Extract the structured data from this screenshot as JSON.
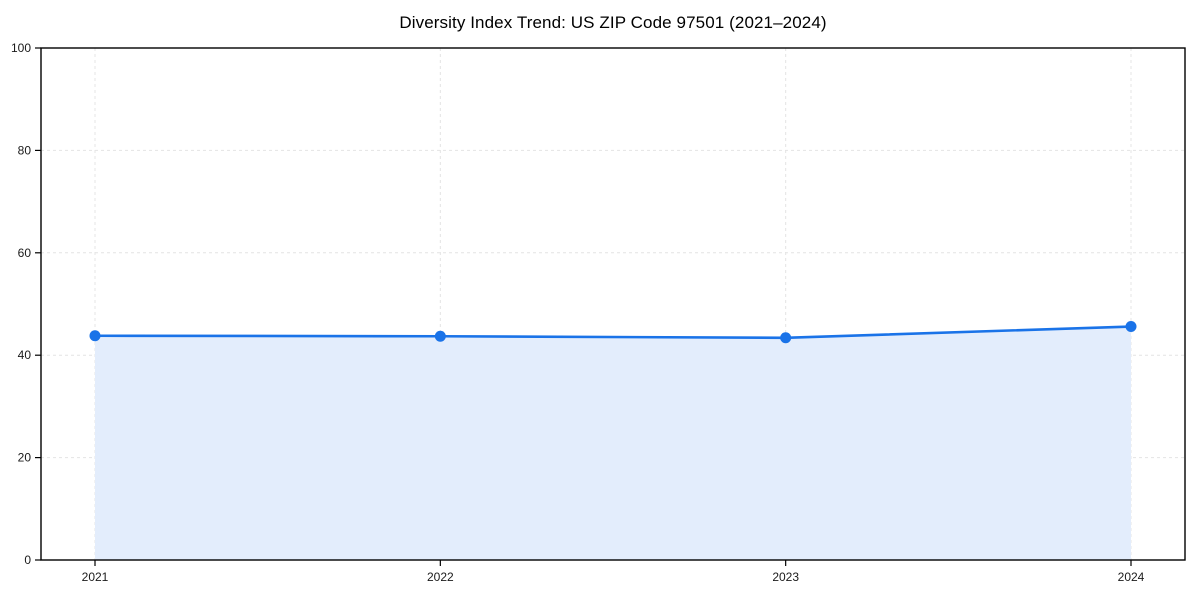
{
  "chart_data": {
    "type": "area",
    "title": "Diversity Index Trend: US ZIP Code 97501 (2021–2024)",
    "x": [
      "2021",
      "2022",
      "2023",
      "2024"
    ],
    "series": [
      {
        "name": "Diversity Index",
        "values": [
          43.8,
          43.7,
          43.4,
          45.6
        ]
      }
    ],
    "xlabel": "",
    "ylabel": "",
    "ylim": [
      0,
      100
    ],
    "yticks": [
      0,
      20,
      40,
      60,
      80,
      100
    ],
    "grid": "dashed both axes",
    "legend": "none",
    "colors": {
      "line": "#1a73e8",
      "marker": "#1a73e8",
      "fill": "#e3edfc",
      "grid": "#e4e4e4",
      "frame": "#000000",
      "tick_text": "#1a1a1a",
      "background": "#ffffff"
    }
  }
}
